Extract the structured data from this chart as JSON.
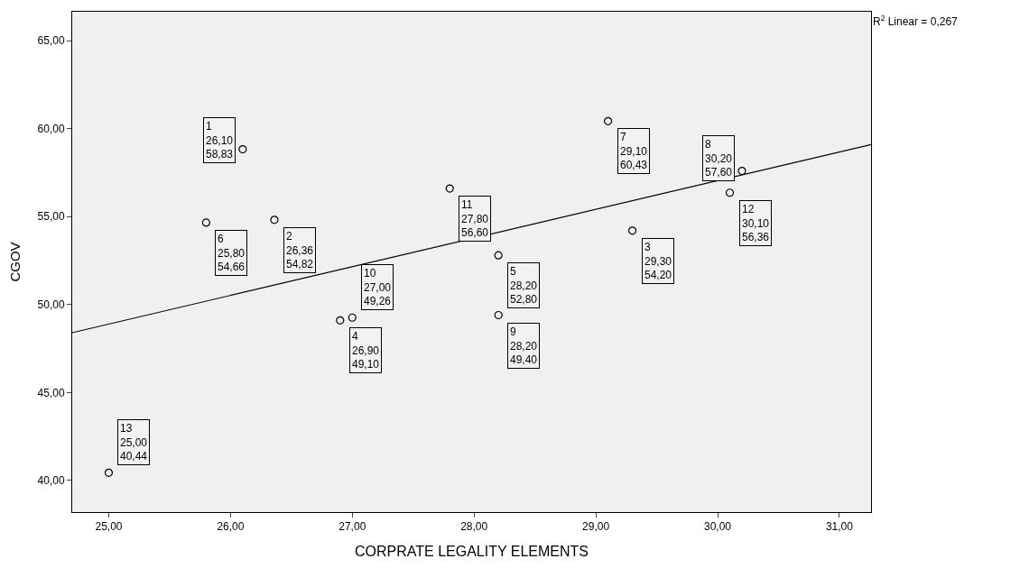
{
  "chart_data": {
    "type": "scatter",
    "xlabel": "CORPRATE LEGALITY ELEMENTS",
    "ylabel": "CGOV",
    "series": [
      {
        "type": "scatter",
        "color": "#000000",
        "marker": "circle",
        "x": [
          26.1,
          26.36,
          29.3,
          26.9,
          28.2,
          25.8,
          29.1,
          30.2,
          28.2,
          27.0,
          27.8,
          30.1,
          25.0
        ],
        "values": [
          58.83,
          54.82,
          54.2,
          49.1,
          52.8,
          54.66,
          60.43,
          57.6,
          49.4,
          49.26,
          56.6,
          56.36,
          40.44
        ],
        "value_labels": [
          "1\n26,10\n58,83",
          "2\n26,36\n54,82",
          "3\n29,30\n54,20",
          "4\n26,90\n49,10",
          "5\n28,20\n52,80",
          "6\n25,80\n54,66",
          "7\n29,10\n60,43",
          "8\n30,20\n57,60",
          "9\n28,20\n49,40",
          "10\n27,00\n49,26",
          "11\n27,80\n56,60",
          "12\n30,10\n56,36",
          "13\n25,00\n40,44"
        ]
      },
      {
        "type": "line",
        "color": "#000000",
        "marker": "none",
        "x": [
          24.7,
          31.26
        ],
        "values": [
          48.4,
          59.1
        ]
      }
    ],
    "annotations": [
      "R$^{2}$ Linear = 0,267"
    ],
    "xlim": [
      24.7,
      31.26
    ],
    "ylim": [
      38.2,
      66.65
    ],
    "xticks": [
      {
        "value": 25,
        "label": "25,00"
      },
      {
        "value": 26,
        "label": "26,00"
      },
      {
        "value": 27,
        "label": "27,00"
      },
      {
        "value": 28,
        "label": "28,00"
      },
      {
        "value": 29,
        "label": "29,00"
      },
      {
        "value": 30,
        "label": "30,00"
      },
      {
        "value": 31,
        "label": "31,00"
      }
    ],
    "yticks": [
      {
        "value": 40,
        "label": "40,00"
      },
      {
        "value": 45,
        "label": "45,00"
      },
      {
        "value": 50,
        "label": "50,00"
      },
      {
        "value": 55,
        "label": "55,00"
      },
      {
        "value": 60,
        "label": "60,00"
      },
      {
        "value": 65,
        "label": "65,00"
      }
    ],
    "grid": false
  }
}
